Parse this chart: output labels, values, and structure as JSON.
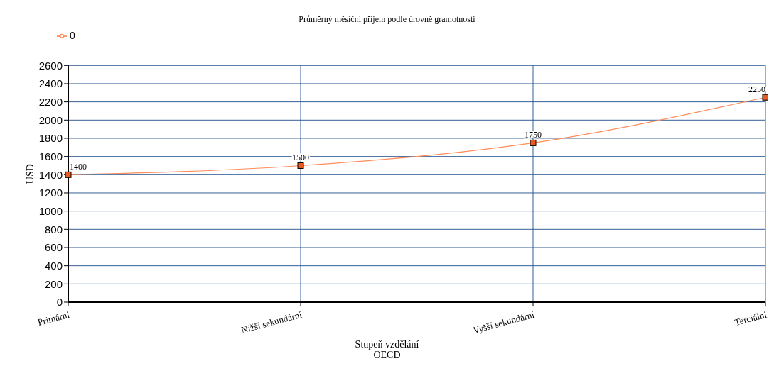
{
  "chart_data": {
    "type": "line",
    "title": "Průměrný měsíční příjem podle úrovně gramotnosti",
    "xlabel": "Stupeň vzdělání",
    "ylabel": "USD",
    "annotations": [
      "OECD"
    ],
    "categories": [
      "Primární",
      "Nižší sekundární",
      "Vyšší sekundární",
      "Terciální"
    ],
    "series": [
      {
        "name": "0",
        "color": "#ff8c5a",
        "values": [
          1400,
          1500,
          1750,
          2250
        ]
      }
    ],
    "ylim": [
      0,
      2600
    ],
    "yticks": [
      0,
      200,
      400,
      600,
      800,
      1000,
      1200,
      1400,
      1600,
      1800,
      2000,
      2200,
      2400,
      2600
    ],
    "grid": true,
    "legend": "top left",
    "marker": "square",
    "data_labels": true
  }
}
